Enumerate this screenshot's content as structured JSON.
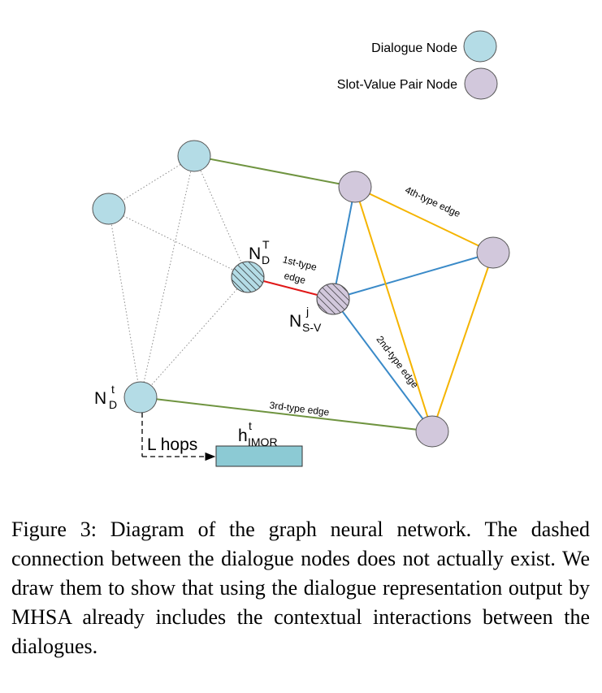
{
  "legend": {
    "dialogue_node": "Dialogue Node",
    "slot_value_node": "Slot-Value Pair Node"
  },
  "colors": {
    "dialogue_node": "#b4dce6",
    "slot_value_node": "#d2c8dc",
    "edge_1st": "#e01818",
    "edge_2nd": "#3a8ac8",
    "edge_3rd": "#6f9440",
    "edge_4th": "#f5b400",
    "dotted": "#8c8c8c",
    "output_box": "#8ccad4"
  },
  "edges": {
    "first_line1": "1st-type",
    "first_line2": "edge",
    "second": "2nd-type edge",
    "third": "3rd-type edge",
    "fourth": "4th-type edge"
  },
  "labels": {
    "nd_T_main": "N",
    "nd_T_sup": "T",
    "nd_T_sub": "D",
    "nsv_main": "N",
    "nsv_sup": "j",
    "nsv_sub": "S-V",
    "nd_t_main": "N",
    "nd_t_sup": "t",
    "nd_t_sub": "D",
    "hops": "L hops",
    "h_main": "h",
    "h_sup": "t",
    "h_sub": "IMOR"
  },
  "caption": "Figure 3: Diagram of the graph neural network. The dashed connection between the dialogue nodes does not actually exist. We draw them to show that using the dialogue representation output by MHSA already includes the contextual interactions between the dialogues."
}
